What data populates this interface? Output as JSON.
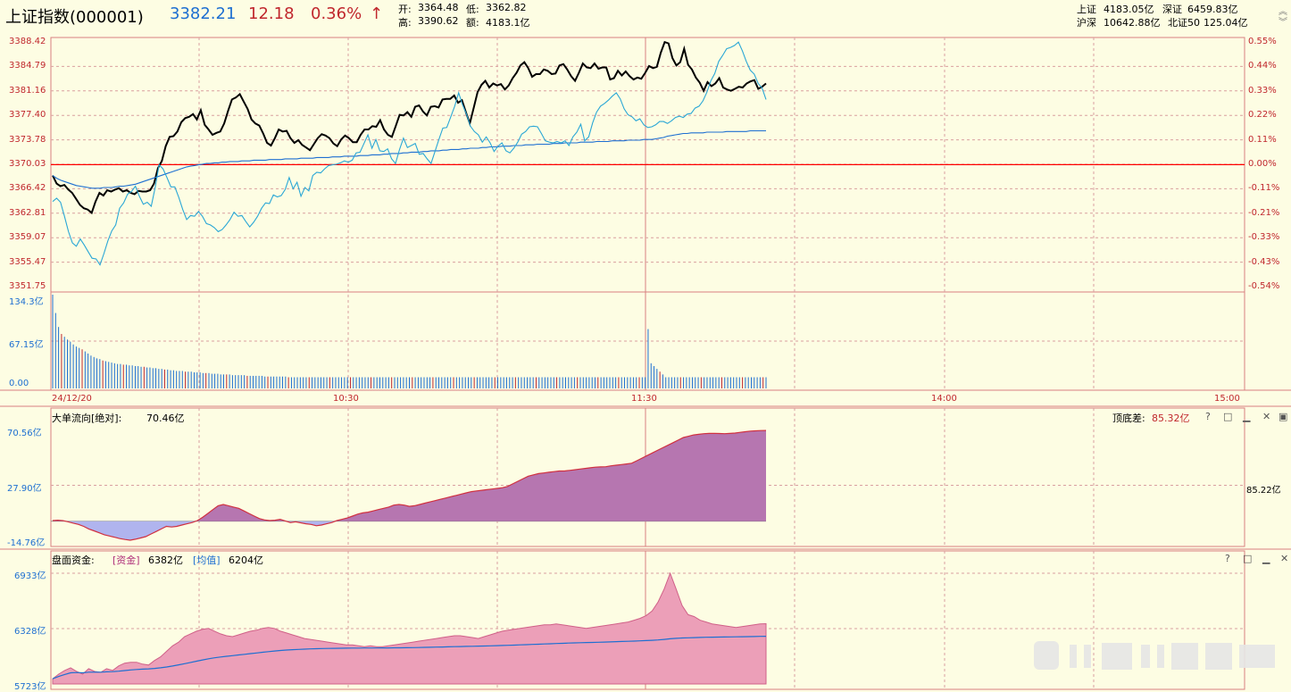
{
  "header": {
    "index_name": "上证指数(000001)",
    "price": "3382.21",
    "change": "12.18",
    "change_pct": "0.36%",
    "arrow": "↑",
    "open_label": "开:",
    "open_value": "3364.48",
    "low_label": "低:",
    "low_value": "3362.82",
    "high_label": "高:",
    "high_value": "3390.62",
    "amount_label": "额:",
    "amount_value": "4183.1亿",
    "sh_label": "上证",
    "sh_value": "4183.05亿",
    "sz_label": "深证",
    "sz_value": "6459.83亿",
    "hs_label": "沪深",
    "hs_value": "10642.88亿",
    "bz_label": "北证50",
    "bz_value": "125.04亿",
    "colors": {
      "price": "#1e6fd1",
      "change": "#c0272d"
    }
  },
  "chart_data": [
    {
      "type": "line",
      "left_ticks": [
        "3388.42",
        "3384.79",
        "3381.16",
        "3377.40",
        "3373.78",
        "3370.03",
        "3366.42",
        "3362.81",
        "3359.07",
        "3355.47",
        "3351.75"
      ],
      "right_ticks": [
        "0.55%",
        "0.44%",
        "0.33%",
        "0.22%",
        "0.11%",
        "0.00%",
        "-0.11%",
        "-0.21%",
        "-0.33%",
        "-0.43%",
        "-0.54%"
      ],
      "ylim": [
        3351.75,
        3388.42
      ],
      "baseline": 3370.03,
      "x_labels": [
        "24/12/20",
        "10:30",
        "11:30",
        "14:00",
        "15:00"
      ],
      "series": [
        {
          "color": "#000000",
          "values": [
            3368.4,
            3367.2,
            3366.8,
            3367.0,
            3366.3,
            3365.8,
            3364.9,
            3364.0,
            3363.5,
            3363.3,
            3362.8,
            3364.5,
            3365.8,
            3365.4,
            3366.2,
            3366.0,
            3366.3,
            3366.5,
            3366.0,
            3366.2,
            3365.8,
            3365.6,
            3366.1,
            3366.0,
            3366.0,
            3366.2,
            3367.2,
            3369.5,
            3370.6,
            3372.8,
            3374.2,
            3374.3,
            3375.0,
            3376.4,
            3377.0,
            3377.2,
            3377.6,
            3376.8,
            3378.2,
            3376.0,
            3375.3,
            3374.5,
            3374.8,
            3375.0,
            3376.2,
            3378.1,
            3379.8,
            3380.1,
            3380.6,
            3379.5,
            3378.4,
            3376.8,
            3376.2,
            3375.9,
            3374.7,
            3373.3,
            3372.9,
            3374.0,
            3375.3,
            3375.0,
            3375.1,
            3374.0,
            3373.3,
            3373.7,
            3373.0,
            3372.6,
            3372.2,
            3373.1,
            3374.0,
            3374.6,
            3374.4,
            3374.0,
            3373.2,
            3372.8,
            3373.8,
            3374.4,
            3374.0,
            3373.4,
            3373.4,
            3374.5,
            3375.3,
            3375.3,
            3375.8,
            3375.7,
            3376.7,
            3375.3,
            3374.5,
            3374.2,
            3375.8,
            3377.5,
            3377.4,
            3377.9,
            3377.2,
            3378.7,
            3378.9,
            3378.0,
            3377.4,
            3378.7,
            3378.8,
            3378.6,
            3379.8,
            3379.9,
            3379.9,
            3380.4,
            3379.3,
            3379.7,
            3377.9,
            3376.2,
            3378.5,
            3380.9,
            3382.0,
            3382.6,
            3381.6,
            3382.2,
            3381.9,
            3382.1,
            3381.3,
            3381.9,
            3383.0,
            3383.8,
            3384.9,
            3385.4,
            3384.5,
            3383.2,
            3383.6,
            3383.6,
            3384.3,
            3384.1,
            3383.6,
            3383.7,
            3384.9,
            3385.1,
            3384.3,
            3383.3,
            3382.6,
            3383.8,
            3385.2,
            3384.6,
            3384.5,
            3385.2,
            3384.4,
            3384.6,
            3384.6,
            3382.8,
            3383.0,
            3384.1,
            3383.4,
            3384.0,
            3383.3,
            3382.8,
            3383.1,
            3382.9,
            3383.8,
            3384.8,
            3384.5,
            3384.7,
            3386.8,
            3388.4,
            3388.2,
            3386.0,
            3384.9,
            3385.4,
            3387.4,
            3385.0,
            3384.3,
            3383.1,
            3382.3,
            3381.1,
            3382.4,
            3381.8,
            3382.2,
            3383.0,
            3381.6,
            3381.3,
            3381.1,
            3381.4,
            3381.7,
            3381.6,
            3382.2,
            3382.5,
            3382.7,
            3381.4,
            3381.7,
            3382.2
          ]
        },
        {
          "color": "#1e6fd1",
          "values": [
            3368.4,
            3368.0,
            3367.7,
            3367.5,
            3367.3,
            3367.1,
            3366.9,
            3366.8,
            3366.7,
            3366.6,
            3366.5,
            3366.5,
            3366.5,
            3366.6,
            3366.6,
            3366.6,
            3366.7,
            3366.8,
            3366.8,
            3366.9,
            3367.0,
            3367.1,
            3367.3,
            3367.5,
            3367.7,
            3367.9,
            3368.1,
            3368.3,
            3368.5,
            3368.7,
            3368.9,
            3369.1,
            3369.3,
            3369.5,
            3369.7,
            3369.8,
            3369.9,
            3370.0,
            3370.1,
            3370.2,
            3370.2,
            3370.3,
            3370.3,
            3370.4,
            3370.4,
            3370.5,
            3370.5,
            3370.5,
            3370.6,
            3370.6,
            3370.6,
            3370.7,
            3370.7,
            3370.7,
            3370.7,
            3370.8,
            3370.8,
            3370.8,
            3370.8,
            3370.9,
            3370.9,
            3370.9,
            3370.9,
            3371.0,
            3371.0,
            3371.0,
            3371.0,
            3371.1,
            3371.1,
            3371.1,
            3371.1,
            3371.2,
            3371.2,
            3371.2,
            3371.3,
            3371.3,
            3371.3,
            3371.3,
            3371.4,
            3371.4,
            3371.4,
            3371.5,
            3371.5,
            3371.5,
            3371.6,
            3371.6,
            3371.7,
            3371.7,
            3371.7,
            3371.8,
            3371.8,
            3371.9,
            3371.9,
            3371.9,
            3372.0,
            3372.0,
            3372.1,
            3372.1,
            3372.1,
            3372.2,
            3372.2,
            3372.3,
            3372.3,
            3372.3,
            3372.4,
            3372.4,
            3372.5,
            3372.5,
            3372.5,
            3372.6,
            3372.6,
            3372.7,
            3372.7,
            3372.7,
            3372.8,
            3372.8,
            3372.8,
            3372.9,
            3372.9,
            3372.9,
            3373.0,
            3373.0,
            3373.0,
            3373.1,
            3373.1,
            3373.1,
            3373.1,
            3373.2,
            3373.2,
            3373.2,
            3373.3,
            3373.3,
            3373.3,
            3373.3,
            3373.4,
            3373.4,
            3373.4,
            3373.4,
            3373.5,
            3373.5,
            3373.5,
            3373.5,
            3373.6,
            3373.6,
            3373.6,
            3373.6,
            3373.7,
            3373.7,
            3373.7,
            3373.7,
            3373.8,
            3373.8,
            3373.8,
            3373.9,
            3374.0,
            3374.1,
            3374.3,
            3374.4,
            3374.5,
            3374.6,
            3374.7,
            3374.7,
            3374.8,
            3374.8,
            3374.8,
            3374.8,
            3374.9,
            3374.9,
            3374.9,
            3374.9,
            3374.9,
            3375.0,
            3375.0,
            3375.0,
            3375.0,
            3375.0,
            3375.0,
            3375.1,
            3375.1,
            3375.1,
            3375.1,
            3375.1
          ]
        },
        {
          "color": "#2aa7d6",
          "values": [
            3364.5,
            3365.0,
            3364.4,
            3362.3,
            3360.0,
            3358.3,
            3357.8,
            3358.9,
            3358.0,
            3357.0,
            3356.0,
            3355.9,
            3355.0,
            3356.7,
            3358.6,
            3360.1,
            3361.0,
            3363.5,
            3364.3,
            3365.6,
            3366.0,
            3366.8,
            3365.3,
            3364.1,
            3364.4,
            3363.8,
            3366.6,
            3370.0,
            3369.4,
            3368.1,
            3366.7,
            3366.7,
            3365.1,
            3363.3,
            3361.8,
            3362.4,
            3362.3,
            3363.0,
            3362.3,
            3361.2,
            3361.0,
            3360.6,
            3360.0,
            3360.3,
            3361.0,
            3361.8,
            3362.9,
            3362.3,
            3362.4,
            3361.5,
            3360.7,
            3361.4,
            3362.3,
            3363.5,
            3364.3,
            3364.2,
            3365.5,
            3365.2,
            3365.4,
            3366.3,
            3368.1,
            3366.4,
            3367.4,
            3365.3,
            3366.6,
            3366.1,
            3368.4,
            3368.9,
            3368.8,
            3369.4,
            3369.9,
            3370.0,
            3370.1,
            3370.3,
            3370.6,
            3370.4,
            3370.7,
            3371.8,
            3371.9,
            3373.2,
            3374.5,
            3372.5,
            3373.8,
            3372.1,
            3372.0,
            3372.4,
            3370.9,
            3370.2,
            3372.3,
            3374.0,
            3372.6,
            3372.9,
            3373.2,
            3371.6,
            3371.7,
            3370.9,
            3370.2,
            3372.0,
            3373.8,
            3375.5,
            3375.6,
            3377.2,
            3378.8,
            3380.8,
            3379.0,
            3377.6,
            3375.8,
            3375.0,
            3374.5,
            3373.4,
            3374.2,
            3373.3,
            3372.0,
            3372.8,
            3373.3,
            3372.1,
            3371.8,
            3372.5,
            3373.4,
            3374.6,
            3375.0,
            3375.7,
            3375.8,
            3375.7,
            3374.7,
            3373.6,
            3373.4,
            3373.3,
            3373.5,
            3373.3,
            3373.6,
            3372.9,
            3374.2,
            3374.9,
            3376.1,
            3373.6,
            3374.2,
            3376.3,
            3377.9,
            3378.8,
            3379.2,
            3379.7,
            3380.3,
            3380.8,
            3379.9,
            3378.4,
            3377.5,
            3377.2,
            3376.6,
            3376.9,
            3376.0,
            3375.6,
            3375.7,
            3376.0,
            3376.5,
            3376.5,
            3376.2,
            3376.6,
            3377.1,
            3377.3,
            3377.1,
            3377.6,
            3377.7,
            3378.5,
            3378.8,
            3379.6,
            3380.9,
            3382.6,
            3383.7,
            3385.5,
            3386.4,
            3387.4,
            3387.6,
            3387.9,
            3388.4,
            3387.1,
            3385.5,
            3384.2,
            3383.6,
            3382.2,
            3381.5,
            3379.8
          ]
        },
        {
          "color": "#ff0000",
          "values": []
        }
      ]
    },
    {
      "type": "bar",
      "ticks": [
        "134.3亿",
        "67.15亿",
        "0.00"
      ],
      "ylim": [
        0,
        134.3
      ],
      "values": [
        134.3,
        108,
        88,
        78,
        74,
        70,
        67,
        63,
        60,
        58,
        56,
        53,
        50,
        47,
        45,
        43,
        42,
        40,
        39,
        38,
        37,
        36,
        35,
        35,
        34,
        34,
        33,
        33,
        32,
        32,
        31,
        31,
        30,
        30,
        29,
        29,
        28,
        28,
        27,
        27,
        26,
        26,
        25,
        25,
        25,
        24,
        24,
        24,
        23,
        23,
        23,
        22,
        22,
        22,
        21,
        21,
        21,
        20,
        20,
        20,
        20,
        19,
        19,
        19,
        19,
        19,
        18,
        18,
        18,
        18,
        18,
        18,
        17,
        17,
        17,
        17,
        17,
        17,
        17,
        17,
        16,
        16,
        16,
        16,
        16,
        16,
        16,
        16,
        16,
        16,
        16,
        16,
        16,
        16,
        16,
        16,
        16,
        16,
        16,
        16,
        16,
        16,
        16,
        16,
        16,
        16,
        16,
        16,
        16,
        16,
        16,
        16,
        16,
        16,
        16,
        16,
        16,
        16,
        16,
        16,
        16,
        16,
        16,
        16,
        16,
        16,
        16,
        16,
        16,
        16,
        16,
        16,
        16,
        16,
        16,
        16,
        16,
        16,
        16,
        16,
        16,
        16,
        16,
        16,
        16,
        16,
        16,
        16,
        16,
        16,
        16,
        16,
        16,
        16,
        16,
        16,
        16,
        16,
        16,
        16,
        16,
        16,
        16,
        16,
        16,
        16,
        16,
        16,
        16,
        16,
        16,
        16,
        16,
        16,
        16,
        16,
        16,
        16,
        16,
        16,
        16,
        16,
        16,
        16,
        16,
        16,
        16,
        16,
        16,
        16,
        16,
        16,
        16,
        16,
        16,
        16,
        16,
        16,
        16,
        16,
        16,
        16,
        16,
        16,
        16,
        16,
        16,
        16,
        16,
        16,
        16,
        16,
        16,
        16,
        16,
        16,
        16,
        16,
        16,
        16,
        16,
        16,
        16,
        16,
        16,
        16,
        16,
        16,
        16,
        16,
        16,
        16,
        16,
        16,
        16,
        16,
        16,
        16,
        16,
        16,
        16,
        16,
        16
      ]
    },
    {
      "type": "area",
      "title": "大单流向[绝对]:",
      "title_value": "70.46亿",
      "right_label": "顶底差:",
      "right_value": "85.32亿",
      "right_mid": "85.22亿",
      "ticks": [
        "70.56亿",
        "27.90亿",
        "-14.76亿"
      ],
      "ylim": [
        -14.76,
        70.56
      ],
      "values": [
        0.5,
        0.8,
        0.4,
        -0.5,
        -1.5,
        -2.5,
        -4,
        -6,
        -7.5,
        -9,
        -10.5,
        -11.5,
        -12.5,
        -13.5,
        -14.2,
        -14.76,
        -14,
        -13,
        -12,
        -10,
        -8,
        -6,
        -4,
        -4.5,
        -4,
        -3,
        -2,
        -1,
        0.5,
        3,
        6,
        9,
        12,
        13,
        12,
        11,
        10,
        8,
        6,
        4,
        2,
        1,
        0.5,
        0.8,
        1.5,
        0.2,
        -1,
        -0.5,
        -1.2,
        -2,
        -2.5,
        -3.5,
        -3,
        -2,
        -1,
        0.5,
        1.5,
        2.5,
        4,
        5.5,
        6.5,
        7,
        8,
        9,
        10,
        11,
        12.5,
        13,
        12.5,
        11.5,
        12,
        13,
        14,
        15,
        16,
        17,
        18,
        19,
        20,
        21,
        22,
        23,
        23.5,
        24,
        24.5,
        25,
        25.5,
        26,
        27,
        29,
        31,
        33,
        35,
        36,
        37,
        37.5,
        38,
        38.5,
        39,
        39,
        39.5,
        40,
        40.5,
        41,
        41.5,
        42,
        42.2,
        42.3,
        43,
        43.5,
        44,
        44.5,
        45,
        47,
        49,
        51,
        53,
        55,
        57,
        59,
        61,
        63,
        65,
        66,
        67,
        67.5,
        68,
        68.2,
        68.3,
        68.1,
        68,
        68.2,
        68.5,
        69,
        69.5,
        70,
        70.2,
        70.4,
        70.46
      ]
    },
    {
      "type": "area",
      "title": "盘面资金:",
      "legend": [
        {
          "name": "[资金]",
          "value": "6382亿"
        },
        {
          "name": "[均值]",
          "value": "6204亿"
        }
      ],
      "ticks": [
        "6933亿",
        "6328亿",
        "5723亿"
      ],
      "ylim": [
        5723,
        6933
      ],
      "values": [
        5780,
        5830,
        5870,
        5900,
        5860,
        5830,
        5890,
        5860,
        5850,
        5890,
        5870,
        5920,
        5950,
        5960,
        5960,
        5940,
        5930,
        5980,
        6020,
        6080,
        6140,
        6180,
        6240,
        6270,
        6300,
        6320,
        6330,
        6300,
        6270,
        6250,
        6240,
        6260,
        6280,
        6300,
        6310,
        6330,
        6340,
        6330,
        6300,
        6280,
        6260,
        6240,
        6220,
        6210,
        6200,
        6190,
        6180,
        6170,
        6160,
        6150,
        6150,
        6140,
        6130,
        6140,
        6130,
        6130,
        6140,
        6150,
        6160,
        6170,
        6180,
        6190,
        6200,
        6210,
        6220,
        6230,
        6240,
        6250,
        6250,
        6240,
        6230,
        6220,
        6240,
        6260,
        6280,
        6300,
        6310,
        6320,
        6330,
        6340,
        6350,
        6360,
        6370,
        6370,
        6380,
        6370,
        6360,
        6350,
        6340,
        6330,
        6340,
        6350,
        6360,
        6370,
        6380,
        6390,
        6400,
        6420,
        6440,
        6470,
        6520,
        6620,
        6760,
        6933,
        6760,
        6580,
        6480,
        6460,
        6420,
        6400,
        6380,
        6370,
        6360,
        6350,
        6340,
        6350,
        6360,
        6370,
        6380,
        6382
      ]
    }
  ]
}
